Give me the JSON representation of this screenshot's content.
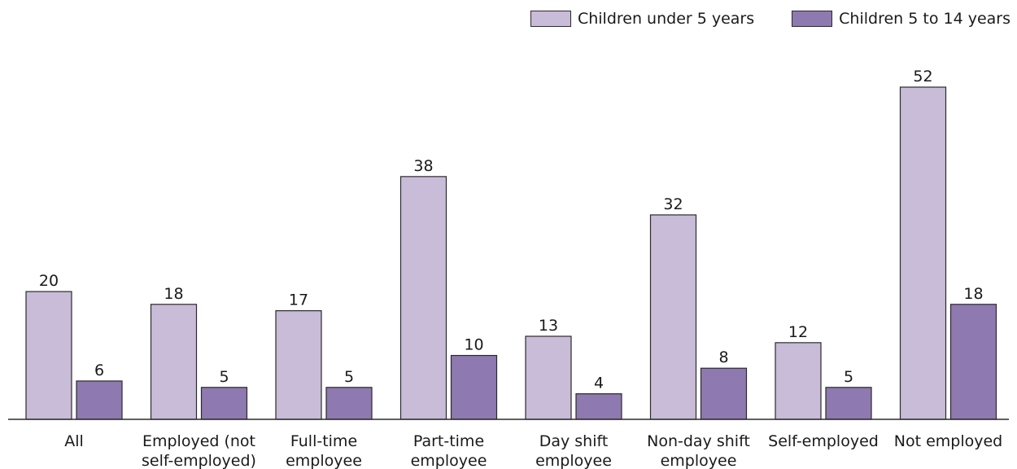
{
  "chart_data": {
    "type": "bar",
    "categories": [
      [
        "All"
      ],
      [
        "Employed (not",
        "self-employed)"
      ],
      [
        "Full-time",
        "employee"
      ],
      [
        "Part-time",
        "employee"
      ],
      [
        "Day shift",
        "employee"
      ],
      [
        "Non-day shift",
        "employee"
      ],
      [
        "Self-employed"
      ],
      [
        "Not employed"
      ]
    ],
    "series": [
      {
        "name": "Children under 5 years",
        "color": "#c8bcd9",
        "values": [
          20,
          18,
          17,
          38,
          13,
          32,
          12,
          52
        ]
      },
      {
        "name": "Children 5 to 14 years",
        "color": "#8e79b0",
        "values": [
          6,
          5,
          5,
          10,
          4,
          8,
          5,
          18
        ]
      }
    ],
    "ylim": [
      0,
      52
    ],
    "grid": false,
    "legend_position": "top-right"
  }
}
